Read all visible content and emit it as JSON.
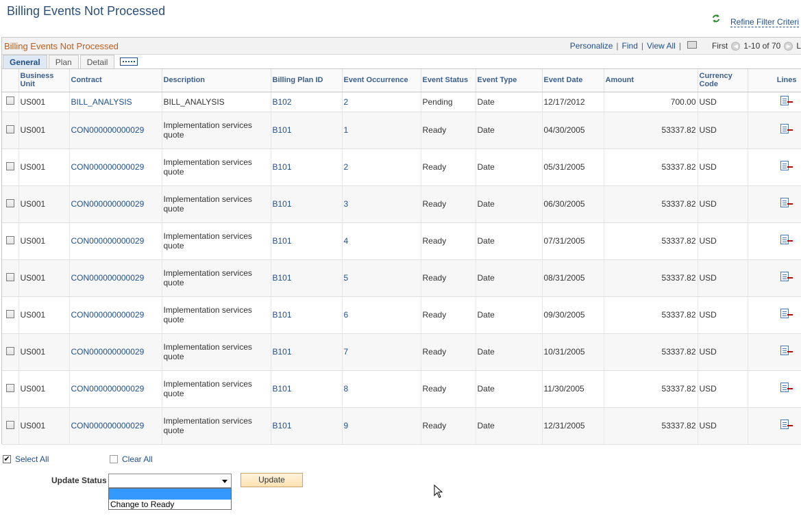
{
  "page": {
    "title": "Billing Events Not Processed"
  },
  "refine": {
    "label": "Refine Filter Criteri"
  },
  "grid": {
    "title": "Billing Events Not Processed",
    "nav": {
      "personalize": "Personalize",
      "find": "Find",
      "view_all": "View All",
      "first": "First",
      "range": "1-10 of 70"
    },
    "tabs": [
      {
        "label": "General"
      },
      {
        "label": "Plan"
      },
      {
        "label": "Detail"
      }
    ],
    "columns": {
      "business_unit": "Business Unit",
      "contract": "Contract",
      "description": "Description",
      "billing_plan_id": "Billing Plan ID",
      "event_occurrence": "Event Occurrence",
      "event_status": "Event Status",
      "event_type": "Event Type",
      "event_date": "Event Date",
      "amount": "Amount",
      "currency_code": "Currency Code",
      "lines": "Lines"
    },
    "rows": [
      {
        "bu": "US001",
        "contract": "BILL_ANALYSIS",
        "description": "BILL_ANALYSIS",
        "plan": "B102",
        "occurrence": "2",
        "status": "Pending",
        "type": "Date",
        "date": "12/17/2012",
        "amount": "700.00",
        "currency": "USD"
      },
      {
        "bu": "US001",
        "contract": "CON000000000029",
        "description": "Implementation services quote",
        "plan": "B101",
        "occurrence": "1",
        "status": "Ready",
        "type": "Date",
        "date": "04/30/2005",
        "amount": "53337.82",
        "currency": "USD"
      },
      {
        "bu": "US001",
        "contract": "CON000000000029",
        "description": "Implementation services quote",
        "plan": "B101",
        "occurrence": "2",
        "status": "Ready",
        "type": "Date",
        "date": "05/31/2005",
        "amount": "53337.82",
        "currency": "USD"
      },
      {
        "bu": "US001",
        "contract": "CON000000000029",
        "description": "Implementation services quote",
        "plan": "B101",
        "occurrence": "3",
        "status": "Ready",
        "type": "Date",
        "date": "06/30/2005",
        "amount": "53337.82",
        "currency": "USD"
      },
      {
        "bu": "US001",
        "contract": "CON000000000029",
        "description": "Implementation services quote",
        "plan": "B101",
        "occurrence": "4",
        "status": "Ready",
        "type": "Date",
        "date": "07/31/2005",
        "amount": "53337.82",
        "currency": "USD"
      },
      {
        "bu": "US001",
        "contract": "CON000000000029",
        "description": "Implementation services quote",
        "plan": "B101",
        "occurrence": "5",
        "status": "Ready",
        "type": "Date",
        "date": "08/31/2005",
        "amount": "53337.82",
        "currency": "USD"
      },
      {
        "bu": "US001",
        "contract": "CON000000000029",
        "description": "Implementation services quote",
        "plan": "B101",
        "occurrence": "6",
        "status": "Ready",
        "type": "Date",
        "date": "09/30/2005",
        "amount": "53337.82",
        "currency": "USD"
      },
      {
        "bu": "US001",
        "contract": "CON000000000029",
        "description": "Implementation services quote",
        "plan": "B101",
        "occurrence": "7",
        "status": "Ready",
        "type": "Date",
        "date": "10/31/2005",
        "amount": "53337.82",
        "currency": "USD"
      },
      {
        "bu": "US001",
        "contract": "CON000000000029",
        "description": "Implementation services quote",
        "plan": "B101",
        "occurrence": "8",
        "status": "Ready",
        "type": "Date",
        "date": "11/30/2005",
        "amount": "53337.82",
        "currency": "USD"
      },
      {
        "bu": "US001",
        "contract": "CON000000000029",
        "description": "Implementation services quote",
        "plan": "B101",
        "occurrence": "9",
        "status": "Ready",
        "type": "Date",
        "date": "12/31/2005",
        "amount": "53337.82",
        "currency": "USD"
      }
    ]
  },
  "actions": {
    "select_all": "Select All",
    "clear_all": "Clear All",
    "update_status_label": "Update Status",
    "update_status_value": "",
    "update_status_options": [
      "",
      "Change to Ready"
    ],
    "update_button": "Update"
  },
  "colors": {
    "title": "#2a4e7d",
    "grid_title": "#c35c1a",
    "link": "#1e4f8c",
    "button": "#fbe1b1"
  }
}
